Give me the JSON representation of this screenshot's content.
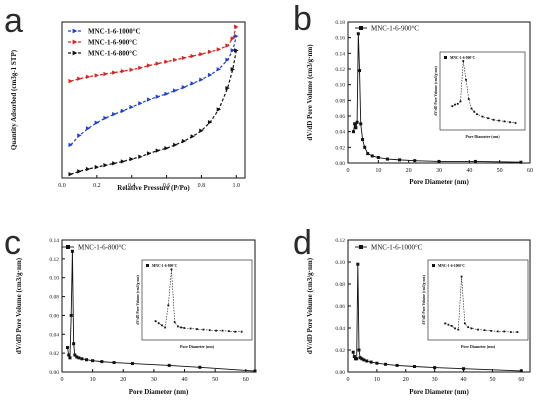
{
  "panels": {
    "a": {
      "letter": "a"
    },
    "b": {
      "letter": "b"
    },
    "c": {
      "letter": "c"
    },
    "d": {
      "letter": "d"
    }
  },
  "chart_data": [
    {
      "id": "a",
      "type": "line",
      "xlabel": "Relative Pressure (P/Po)",
      "ylabel": "Quantity Adsorbed (cm3g-1 STP)",
      "xlim": [
        0,
        1.05
      ],
      "ylim": [
        0,
        330
      ],
      "xticks": [
        "0.0",
        "0.2",
        "0.4",
        "0.6",
        "0.8",
        "1.0"
      ],
      "xtick_values": [
        0,
        0.2,
        0.4,
        0.6,
        0.8,
        1.0
      ],
      "legend": [
        "MNC-1-6-1000°C",
        "MNC-1-6-900°C",
        "MNC-1-6-800°C"
      ],
      "colors": {
        "MNC-1-6-1000°C": "#1f3fd8",
        "MNC-1-6-900°C": "#e02020",
        "MNC-1-6-800°C": "#111111"
      },
      "series": [
        {
          "name": "MNC-1-6-1000°C",
          "x": [
            0.05,
            0.1,
            0.15,
            0.2,
            0.25,
            0.3,
            0.35,
            0.4,
            0.45,
            0.5,
            0.55,
            0.6,
            0.65,
            0.7,
            0.75,
            0.8,
            0.85,
            0.9,
            0.95,
            0.98,
            1.0
          ],
          "y": [
            70,
            90,
            105,
            117,
            127,
            135,
            142,
            150,
            158,
            166,
            172,
            178,
            185,
            192,
            200,
            208,
            218,
            230,
            250,
            270,
            300
          ]
        },
        {
          "name": "MNC-1-6-900°C",
          "x": [
            0.05,
            0.1,
            0.15,
            0.2,
            0.25,
            0.3,
            0.35,
            0.4,
            0.45,
            0.5,
            0.55,
            0.6,
            0.65,
            0.7,
            0.75,
            0.8,
            0.85,
            0.9,
            0.95,
            0.98,
            1.0
          ],
          "y": [
            205,
            210,
            214,
            217,
            220,
            223,
            226,
            229,
            233,
            238,
            242,
            246,
            250,
            254,
            258,
            262,
            267,
            272,
            280,
            295,
            320
          ]
        },
        {
          "name": "MNC-1-6-800°C",
          "x": [
            0.05,
            0.1,
            0.15,
            0.2,
            0.25,
            0.3,
            0.35,
            0.4,
            0.45,
            0.5,
            0.55,
            0.6,
            0.65,
            0.7,
            0.75,
            0.8,
            0.85,
            0.9,
            0.95,
            0.98,
            1.0
          ],
          "y": [
            8,
            14,
            19,
            23,
            27,
            31,
            35,
            40,
            45,
            52,
            58,
            63,
            70,
            78,
            88,
            100,
            118,
            145,
            190,
            230,
            270
          ]
        }
      ]
    },
    {
      "id": "b",
      "type": "line",
      "xlabel": "Pore Diameter (nm)",
      "ylabel": "dV/dD Pore Volume (cm3/g·nm)",
      "xlim": [
        0,
        60
      ],
      "ylim": [
        0,
        0.18
      ],
      "xticks": [
        "0",
        "10",
        "20",
        "30",
        "40",
        "50",
        "60"
      ],
      "xtick_values": [
        0,
        10,
        20,
        30,
        40,
        50,
        60
      ],
      "yticks": [
        "0.00",
        "0.02",
        "0.04",
        "0.06",
        "0.08",
        "0.10",
        "0.12",
        "0.14",
        "0.16",
        "0.18"
      ],
      "ytick_values": [
        0,
        0.02,
        0.04,
        0.06,
        0.08,
        0.1,
        0.12,
        0.14,
        0.16,
        0.18
      ],
      "legend": [
        "MNC-1-6-900°C"
      ],
      "series": [
        {
          "name": "MNC-1-6-900°C",
          "x": [
            1.8,
            2.2,
            2.6,
            3.0,
            3.4,
            3.8,
            4.2,
            4.8,
            5.5,
            6.5,
            8,
            10,
            13,
            17,
            22,
            30,
            42,
            57
          ],
          "y": [
            0.04,
            0.05,
            0.045,
            0.052,
            0.165,
            0.118,
            0.05,
            0.03,
            0.02,
            0.012,
            0.009,
            0.007,
            0.005,
            0.004,
            0.003,
            0.002,
            0.002,
            0.001
          ]
        }
      ],
      "inset": {
        "legend": "MNC-1-6-900°C",
        "xlabel": "Pore Diameter (nm)",
        "ylabel": "dV/dD Pore Volume (cm3/g·nm)",
        "xlim": [
          0,
          14
        ],
        "ylim": [
          0,
          0.18
        ],
        "x": [
          1.5,
          2,
          2.5,
          3,
          3.5,
          4,
          4.5,
          5,
          5.5,
          6,
          7,
          8,
          9,
          10,
          11,
          12,
          13
        ],
        "y": [
          0.052,
          0.056,
          0.058,
          0.064,
          0.165,
          0.118,
          0.07,
          0.046,
          0.038,
          0.032,
          0.026,
          0.022,
          0.018,
          0.016,
          0.014,
          0.012,
          0.01
        ]
      }
    },
    {
      "id": "c",
      "type": "line",
      "xlabel": "Pore Diameter (nm)",
      "ylabel": "dV/dD Pore Volume (cm3/g·nm)",
      "xlim": [
        0,
        63
      ],
      "ylim": [
        0,
        0.14
      ],
      "xticks": [
        "0",
        "10",
        "20",
        "30",
        "40",
        "50",
        "60"
      ],
      "xtick_values": [
        0,
        10,
        20,
        30,
        40,
        50,
        60
      ],
      "yticks": [
        "0.00",
        "0.02",
        "0.04",
        "0.06",
        "0.08",
        "0.10",
        "0.12",
        "0.14"
      ],
      "ytick_values": [
        0,
        0.02,
        0.04,
        0.06,
        0.08,
        0.1,
        0.12,
        0.14
      ],
      "legend": [
        "MNC-1-6-800°C"
      ],
      "series": [
        {
          "name": "MNC-1-6-800°C",
          "x": [
            1.8,
            2.2,
            2.6,
            3.0,
            3.4,
            3.8,
            4.2,
            4.8,
            5.5,
            6.5,
            8,
            10,
            13,
            17,
            23,
            35,
            45,
            63
          ],
          "y": [
            0.026,
            0.018,
            0.015,
            0.06,
            0.128,
            0.03,
            0.018,
            0.016,
            0.015,
            0.014,
            0.013,
            0.012,
            0.011,
            0.01,
            0.009,
            0.007,
            0.005,
            0.001
          ]
        }
      ],
      "inset": {
        "legend": "MNC-1-6-800°C",
        "xlabel": "Pore Diameter (nm)",
        "ylabel": "dV/dD Pore Volume (cm3/g·nm)",
        "xlim": [
          0,
          16
        ],
        "ylim": [
          0,
          0.14
        ],
        "x": [
          1.5,
          2,
          2.5,
          3,
          3.5,
          4,
          4.5,
          5,
          5.5,
          6,
          7,
          8,
          9,
          10,
          11,
          12,
          13,
          14,
          15
        ],
        "y": [
          0.03,
          0.026,
          0.022,
          0.018,
          0.06,
          0.128,
          0.028,
          0.02,
          0.018,
          0.017,
          0.016,
          0.015,
          0.014,
          0.013,
          0.012,
          0.012,
          0.011,
          0.01,
          0.01
        ]
      }
    },
    {
      "id": "d",
      "type": "line",
      "xlabel": "Pore Diameter (nm)",
      "ylabel": "dV/dD Pore Volume (cm3/g·nm)",
      "xlim": [
        0,
        63
      ],
      "ylim": [
        0,
        0.12
      ],
      "xticks": [
        "0",
        "10",
        "20",
        "30",
        "40",
        "50",
        "60"
      ],
      "xtick_values": [
        0,
        10,
        20,
        30,
        40,
        50,
        60
      ],
      "yticks": [
        "0.00",
        "0.02",
        "0.04",
        "0.06",
        "0.08",
        "0.10",
        "0.12"
      ],
      "ytick_values": [
        0,
        0.02,
        0.04,
        0.06,
        0.08,
        0.1,
        0.12
      ],
      "legend": [
        "MNC-1-6-1000°C"
      ],
      "series": [
        {
          "name": "MNC-1-6-1000°C",
          "x": [
            1.8,
            2.2,
            2.6,
            3.0,
            3.4,
            3.8,
            4.2,
            4.8,
            5.5,
            6.5,
            8,
            10,
            13,
            17,
            23,
            30,
            40,
            60
          ],
          "y": [
            0.018,
            0.014,
            0.012,
            0.012,
            0.098,
            0.02,
            0.013,
            0.012,
            0.011,
            0.01,
            0.009,
            0.008,
            0.007,
            0.006,
            0.005,
            0.004,
            0.003,
            0.001
          ]
        }
      ],
      "inset": {
        "legend": "MNC-1-6-1000°C",
        "xlabel": "Pore Diameter (nm)",
        "ylabel": "dV/dD Pore Volume (cm3/g·nm)",
        "xlim": [
          0,
          14
        ],
        "ylim": [
          0,
          0.12
        ],
        "x": [
          2,
          2.5,
          3,
          3.5,
          4,
          4.5,
          5,
          5.5,
          6,
          7,
          8,
          9,
          10,
          11,
          12,
          13
        ],
        "y": [
          0.022,
          0.02,
          0.018,
          0.014,
          0.012,
          0.098,
          0.022,
          0.016,
          0.014,
          0.012,
          0.011,
          0.01,
          0.009,
          0.009,
          0.008,
          0.008
        ]
      }
    }
  ]
}
